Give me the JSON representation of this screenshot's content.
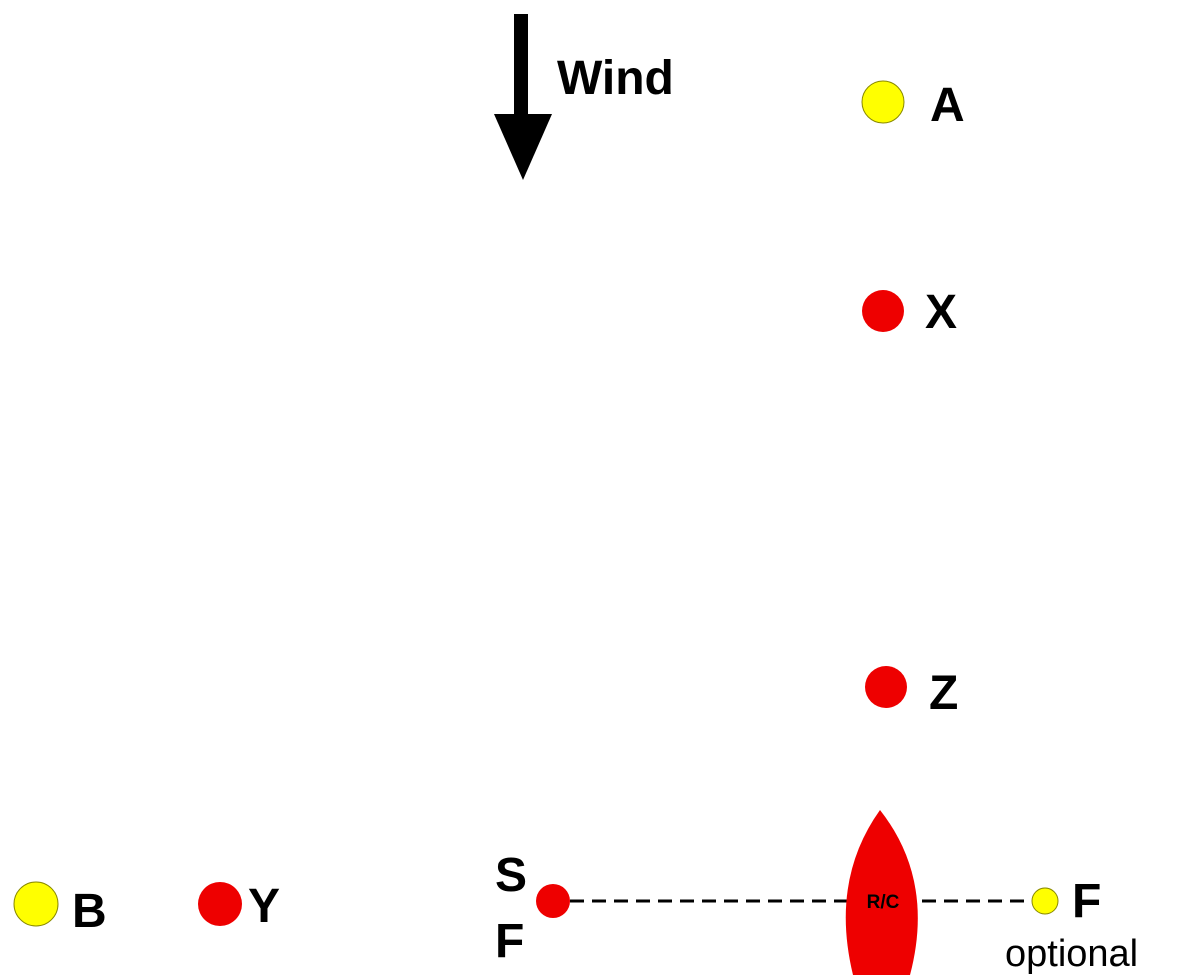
{
  "wind": {
    "label": "Wind"
  },
  "marks": {
    "a": {
      "label": "A",
      "color": "#ffff00"
    },
    "x": {
      "label": "X",
      "color": "#ee0000"
    },
    "z": {
      "label": "Z",
      "color": "#ee0000"
    },
    "b": {
      "label": "B",
      "color": "#ffff00"
    },
    "y": {
      "label": "Y",
      "color": "#ee0000"
    }
  },
  "start_finish": {
    "pin_label_top": "S",
    "pin_label_bottom": "F",
    "pin_color": "#ee0000",
    "committee_boat_label": "R/C",
    "committee_boat_color": "#ee0000",
    "optional_finish_label": "F",
    "optional_finish_note": "optional",
    "optional_finish_color": "#ffff00"
  }
}
